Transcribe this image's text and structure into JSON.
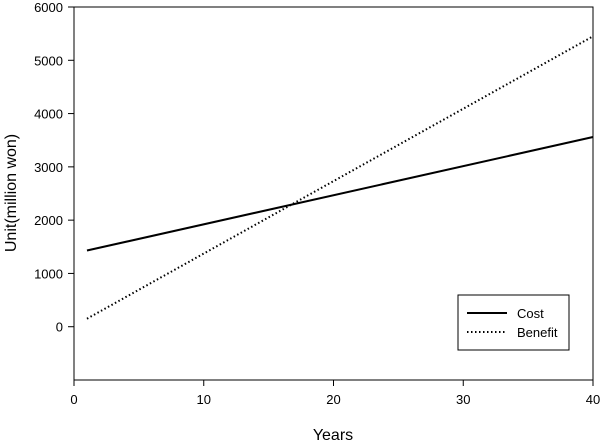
{
  "chart_data": {
    "type": "line",
    "xlabel": "Years",
    "ylabel": "Unit(million won)",
    "xlim": [
      0,
      40
    ],
    "ylim": [
      -1000,
      6000
    ],
    "xticks": [
      0,
      10,
      20,
      30,
      40
    ],
    "yticks": [
      0,
      1000,
      2000,
      3000,
      4000,
      5000,
      6000
    ],
    "grid": false,
    "legend_position": "bottom-right",
    "series": [
      {
        "name": "Cost",
        "line_style": "solid",
        "color": "#000000",
        "x": [
          1,
          40
        ],
        "y": [
          1430,
          3560
        ]
      },
      {
        "name": "Benefit",
        "line_style": "dotted",
        "color": "#000000",
        "x": [
          1,
          40
        ],
        "y": [
          150,
          5450
        ]
      }
    ]
  }
}
